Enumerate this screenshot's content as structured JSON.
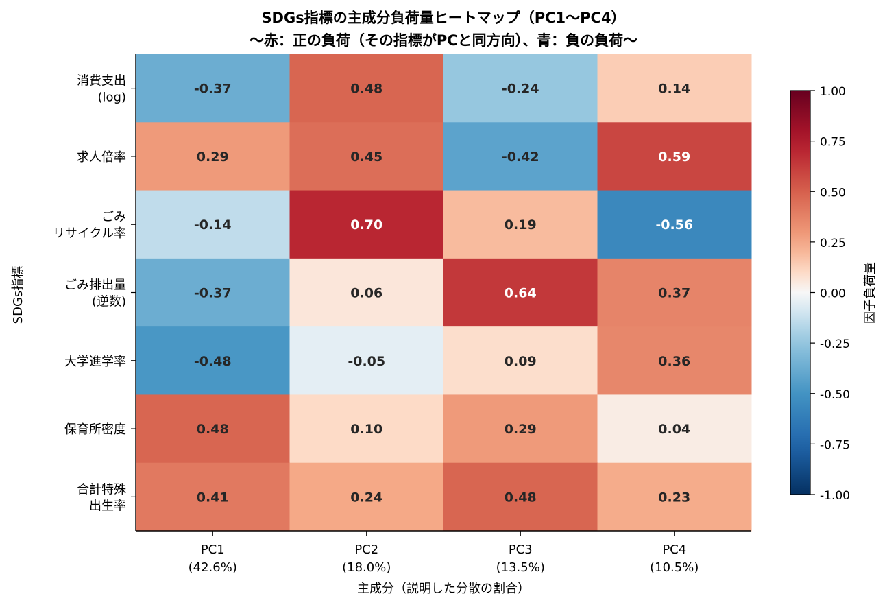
{
  "chart_data": {
    "type": "heatmap",
    "title_lines": [
      "SDGs指標の主成分負荷量ヒートマップ（PC1〜PC4）",
      "〜赤：正の負荷（その指標がPCと同方向）、青：負の負荷〜"
    ],
    "xlabel": "主成分（説明した分散の割合）",
    "ylabel": "SDGs指標",
    "colorbar_label": "因子負荷量",
    "colorbar_ticks": [
      "1.00",
      "0.75",
      "0.50",
      "0.25",
      "0.00",
      "-0.25",
      "-0.50",
      "-0.75",
      "-1.00"
    ],
    "colorscale": "RdBu_r",
    "vlim": [
      -1.0,
      1.0
    ],
    "columns": [
      {
        "name": "PC1",
        "variance": "(42.6%)"
      },
      {
        "name": "PC2",
        "variance": "(18.0%)"
      },
      {
        "name": "PC3",
        "variance": "(13.5%)"
      },
      {
        "name": "PC4",
        "variance": "(10.5%)"
      }
    ],
    "rows": [
      {
        "lines": [
          "消費支出",
          "(log)"
        ],
        "values": [
          -0.37,
          0.48,
          -0.24,
          0.14
        ]
      },
      {
        "lines": [
          "求人倍率"
        ],
        "values": [
          0.29,
          0.45,
          -0.42,
          0.59
        ]
      },
      {
        "lines": [
          "ごみ",
          "リサイクル率"
        ],
        "values": [
          -0.14,
          0.7,
          0.19,
          -0.56
        ]
      },
      {
        "lines": [
          "ごみ排出量",
          "(逆数)"
        ],
        "values": [
          -0.37,
          0.06,
          0.64,
          0.37
        ]
      },
      {
        "lines": [
          "大学進学率"
        ],
        "values": [
          -0.48,
          -0.05,
          0.09,
          0.36
        ]
      },
      {
        "lines": [
          "保育所密度"
        ],
        "values": [
          0.48,
          0.1,
          0.29,
          0.04
        ]
      },
      {
        "lines": [
          "合計特殊",
          "出生率"
        ],
        "values": [
          0.41,
          0.24,
          0.48,
          0.23
        ]
      }
    ]
  }
}
